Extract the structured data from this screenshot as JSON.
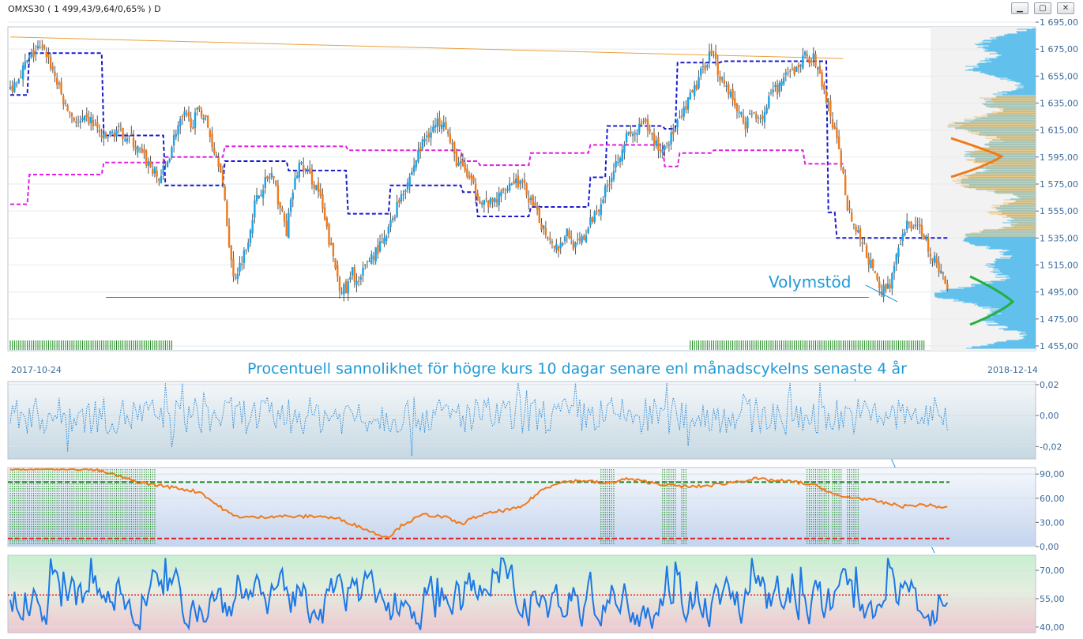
{
  "window": {
    "title": "OMXS30 ( 1 499,43/9,64/0,65% )  D",
    "minimize_glyph": "▁",
    "maximize_glyph": "▢",
    "close_glyph": "✕"
  },
  "chart_data": [
    {
      "panel": "price",
      "type": "candlestick",
      "date_range": [
        "2017-10-24",
        "2018-12-14"
      ],
      "yticks": [
        "1 695,00",
        "1 675,00",
        "1 655,00",
        "1 635,00",
        "1 615,00",
        "1 595,00",
        "1 575,00",
        "1 555,00",
        "1 535,00",
        "1 515,00",
        "1 495,00",
        "1 475,00",
        "1 455,00"
      ],
      "ylim": [
        1455,
        1695
      ],
      "grid": true,
      "close_anchors": [
        [
          0,
          1645
        ],
        [
          5,
          1658
        ],
        [
          9,
          1668
        ],
        [
          13,
          1675
        ],
        [
          17,
          1672
        ],
        [
          21,
          1655
        ],
        [
          26,
          1632
        ],
        [
          32,
          1620
        ],
        [
          38,
          1622
        ],
        [
          44,
          1608
        ],
        [
          50,
          1615
        ],
        [
          56,
          1610
        ],
        [
          61,
          1598
        ],
        [
          66,
          1588
        ],
        [
          70,
          1578
        ],
        [
          74,
          1592
        ],
        [
          78,
          1615
        ],
        [
          82,
          1625
        ],
        [
          86,
          1620
        ],
        [
          89,
          1632
        ],
        [
          92,
          1622
        ],
        [
          95,
          1605
        ],
        [
          99,
          1588
        ],
        [
          102,
          1545
        ],
        [
          105,
          1505
        ],
        [
          108,
          1515
        ],
        [
          111,
          1528
        ],
        [
          115,
          1560
        ],
        [
          119,
          1575
        ],
        [
          123,
          1582
        ],
        [
          127,
          1558
        ],
        [
          130,
          1540
        ],
        [
          133,
          1570
        ],
        [
          136,
          1590
        ],
        [
          139,
          1585
        ],
        [
          142,
          1578
        ],
        [
          145,
          1570
        ],
        [
          149,
          1540
        ],
        [
          152,
          1520
        ],
        [
          155,
          1500
        ],
        [
          158,
          1495
        ],
        [
          161,
          1510
        ],
        [
          164,
          1500
        ],
        [
          168,
          1518
        ],
        [
          172,
          1525
        ],
        [
          176,
          1532
        ],
        [
          180,
          1550
        ],
        [
          184,
          1568
        ],
        [
          188,
          1580
        ],
        [
          192,
          1598
        ],
        [
          196,
          1612
        ],
        [
          200,
          1618
        ],
        [
          204,
          1625
        ],
        [
          207,
          1605
        ],
        [
          210,
          1592
        ],
        [
          214,
          1585
        ],
        [
          218,
          1572
        ],
        [
          222,
          1562
        ],
        [
          226,
          1560
        ],
        [
          230,
          1565
        ],
        [
          234,
          1575
        ],
        [
          238,
          1578
        ],
        [
          242,
          1572
        ],
        [
          246,
          1558
        ],
        [
          250,
          1545
        ],
        [
          254,
          1535
        ],
        [
          258,
          1528
        ],
        [
          262,
          1540
        ],
        [
          266,
          1528
        ],
        [
          270,
          1535
        ],
        [
          274,
          1550
        ],
        [
          278,
          1562
        ],
        [
          282,
          1578
        ],
        [
          286,
          1595
        ],
        [
          290,
          1610
        ],
        [
          294,
          1612
        ],
        [
          298,
          1620
        ],
        [
          302,
          1610
        ],
        [
          306,
          1600
        ],
        [
          310,
          1608
        ],
        [
          314,
          1618
        ],
        [
          318,
          1632
        ],
        [
          322,
          1645
        ],
        [
          326,
          1660
        ],
        [
          330,
          1675
        ],
        [
          334,
          1655
        ],
        [
          338,
          1645
        ],
        [
          342,
          1630
        ],
        [
          346,
          1620
        ],
        [
          350,
          1628
        ],
        [
          354,
          1625
        ],
        [
          358,
          1640
        ],
        [
          362,
          1648
        ],
        [
          366,
          1655
        ],
        [
          370,
          1660
        ],
        [
          374,
          1670
        ],
        [
          378,
          1668
        ],
        [
          382,
          1650
        ],
        [
          386,
          1625
        ],
        [
          390,
          1600
        ],
        [
          394,
          1560
        ],
        [
          398,
          1540
        ],
        [
          402,
          1528
        ],
        [
          406,
          1510
        ],
        [
          410,
          1495
        ],
        [
          414,
          1502
        ],
        [
          418,
          1525
        ],
        [
          422,
          1545
        ],
        [
          426,
          1545
        ],
        [
          430,
          1538
        ],
        [
          434,
          1520
        ],
        [
          438,
          1510
        ],
        [
          441,
          1499
        ]
      ],
      "series": [
        {
          "name": "",
          "color": "#1a1acc",
          "style": "dashed-step",
          "points": [
            [
              0,
              1641
            ],
            [
              8,
              1641
            ],
            [
              9,
              1672
            ],
            [
              43,
              1672
            ],
            [
              44,
              1611
            ],
            [
              72,
              1611
            ],
            [
              73,
              1574
            ],
            [
              100,
              1574
            ],
            [
              101,
              1592
            ],
            [
              130,
              1592
            ],
            [
              131,
              1585
            ],
            [
              158,
              1585
            ],
            [
              159,
              1553
            ],
            [
              178,
              1553
            ],
            [
              179,
              1574
            ],
            [
              212,
              1574
            ],
            [
              213,
              1569
            ],
            [
              219,
              1569
            ],
            [
              220,
              1551
            ],
            [
              244,
              1551
            ],
            [
              245,
              1558
            ],
            [
              272,
              1558
            ],
            [
              273,
              1580
            ],
            [
              280,
              1580
            ],
            [
              281,
              1618
            ],
            [
              307,
              1618
            ],
            [
              308,
              1616
            ],
            [
              313,
              1616
            ],
            [
              314,
              1665
            ],
            [
              334,
              1665
            ],
            [
              335,
              1666
            ],
            [
              384,
              1666
            ],
            [
              385,
              1554
            ],
            [
              388,
              1554
            ],
            [
              389,
              1535
            ],
            [
              441,
              1535
            ]
          ]
        },
        {
          "name": "",
          "color": "#e020e0",
          "style": "dashed-step",
          "points": [
            [
              0,
              1560
            ],
            [
              8,
              1560
            ],
            [
              9,
              1582
            ],
            [
              43,
              1582
            ],
            [
              44,
              1591
            ],
            [
              72,
              1591
            ],
            [
              73,
              1595
            ],
            [
              100,
              1595
            ],
            [
              101,
              1603
            ],
            [
              158,
              1603
            ],
            [
              159,
              1600
            ],
            [
              212,
              1600
            ],
            [
              213,
              1592
            ],
            [
              220,
              1592
            ],
            [
              221,
              1589
            ],
            [
              244,
              1589
            ],
            [
              245,
              1598
            ],
            [
              272,
              1598
            ],
            [
              273,
              1604
            ],
            [
              280,
              1604
            ],
            [
              281,
              1604
            ],
            [
              307,
              1604
            ],
            [
              308,
              1588
            ],
            [
              314,
              1588
            ],
            [
              315,
              1598
            ],
            [
              330,
              1598
            ],
            [
              331,
              1600
            ],
            [
              373,
              1600
            ],
            [
              374,
              1590
            ],
            [
              392,
              1590
            ]
          ]
        },
        {
          "name": "",
          "color": "#e8a23c",
          "style": "solid",
          "points": [
            [
              0,
              1684
            ],
            [
              392,
              1668
            ]
          ]
        },
        {
          "name": "",
          "color": "#22a040",
          "style": "solid",
          "points": [
            [
              45,
              1491
            ],
            [
              404,
              1491
            ]
          ]
        }
      ],
      "annotations": [
        {
          "text": "Volymstöd",
          "color": "#1f9ad6"
        }
      ],
      "volume_profile": {
        "color_low": "#e8c070",
        "color_high": "#4ab8ec"
      }
    },
    {
      "panel": "oscillator-1",
      "type": "line",
      "yticks": [
        "0,02",
        "0,00",
        "-0,02"
      ],
      "ylim": [
        -0.028,
        0.022
      ],
      "color": "#2a8ad8",
      "style": "dotted"
    },
    {
      "panel": "oscillator-2",
      "type": "line",
      "yticks": [
        "90,00",
        "60,00",
        "30,00",
        "0,00"
      ],
      "ylim": [
        0,
        98
      ],
      "color": "#f07a1a",
      "upper_level": 80,
      "lower_level": 10,
      "anchors": [
        [
          0,
          97
        ],
        [
          30,
          97
        ],
        [
          40,
          95
        ],
        [
          50,
          88
        ],
        [
          60,
          80
        ],
        [
          70,
          76
        ],
        [
          80,
          72
        ],
        [
          90,
          67
        ],
        [
          95,
          56
        ],
        [
          105,
          38
        ],
        [
          115,
          36
        ],
        [
          125,
          38
        ],
        [
          135,
          37
        ],
        [
          145,
          38
        ],
        [
          155,
          34
        ],
        [
          165,
          24
        ],
        [
          172,
          16
        ],
        [
          178,
          12
        ],
        [
          185,
          28
        ],
        [
          195,
          40
        ],
        [
          205,
          36
        ],
        [
          212,
          28
        ],
        [
          220,
          38
        ],
        [
          230,
          44
        ],
        [
          240,
          48
        ],
        [
          250,
          70
        ],
        [
          258,
          80
        ],
        [
          270,
          82
        ],
        [
          280,
          78
        ],
        [
          290,
          84
        ],
        [
          300,
          80
        ],
        [
          310,
          76
        ],
        [
          320,
          74
        ],
        [
          330,
          76
        ],
        [
          340,
          80
        ],
        [
          350,
          84
        ],
        [
          360,
          82
        ],
        [
          370,
          80
        ],
        [
          380,
          75
        ],
        [
          390,
          62
        ],
        [
          400,
          60
        ],
        [
          410,
          55
        ],
        [
          420,
          50
        ],
        [
          430,
          52
        ],
        [
          441,
          48
        ]
      ]
    },
    {
      "panel": "oscillator-3",
      "type": "line",
      "yticks": [
        "70,00",
        "55,00",
        "40,00"
      ],
      "ylim": [
        37,
        78
      ],
      "color": "#1c78e6",
      "ref_level": 57
    }
  ],
  "labels": {
    "date_start": "2017-10-24",
    "date_end": "2018-12-14",
    "subtitle": "Procentuell sannolikhet för högre kurs 10 dagar senare enl månadscykelns senaste 4 år",
    "volymstod": "Volymstöd"
  }
}
